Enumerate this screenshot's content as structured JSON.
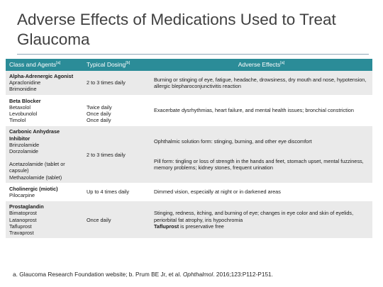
{
  "title": "Adverse Effects of Medications Used to Treat Glaucoma",
  "table": {
    "headers": [
      {
        "label": "Class and Agents",
        "sup": "[a]"
      },
      {
        "label": "Typical Dosing",
        "sup": "[b]"
      },
      {
        "label": "Adverse Effects",
        "sup": "[a]"
      }
    ],
    "rows": [
      {
        "class": "Alpha-Adrenergic Agonist",
        "agents": [
          "Apraclonidine",
          "Brimonidine"
        ],
        "dosing": "2 to 3 times daily",
        "effects": "Burning or stinging of eye, fatigue, headache, drowsiness, dry mouth and nose, hypotension, allergic blepharoconjunctivitis reaction"
      },
      {
        "class": "Beta Blocker",
        "agents": [
          "Betaxolol",
          "Levobunolol",
          "Timolol"
        ],
        "dosing_lines": [
          "Twice daily",
          "Once daily",
          "Once daily"
        ],
        "effects": "Exacerbate dysrhythmias, heart failure, and mental health issues; bronchial constriction"
      },
      {
        "class": "Carbonic Anhydrase Inhibitor",
        "agents": [
          "Brinzolamide",
          "Dorzolamide"
        ],
        "agents2": [
          "Acetazolamide (tablet or capsule)",
          "Methazolamide (tablet)"
        ],
        "dosing": "2 to 3 times daily",
        "effects_1": "Ophthalmic solution form: stinging, burning, and other eye discomfort",
        "effects_2": "Pill form: tingling or loss of strength in the hands and feet, stomach upset, mental fuzziness, memory problems; kidney stones, frequent urination"
      },
      {
        "class": "Cholinergic (miotic)",
        "agents": [
          "Pilocarpine"
        ],
        "dosing": "Up to 4 times daily",
        "effects": "Dimmed vision, especially at night or in darkened areas"
      },
      {
        "class": "Prostaglandin",
        "agents": [
          "Bimatoprost",
          "Latanoprost",
          "Tafluprost",
          "Travaprost"
        ],
        "dosing": "Once daily",
        "effects": "Stinging, redness, itching, and burning of eye; changes in eye color and skin of eyelids, periorbital fat atrophy, iris hypochromia",
        "effects_note": "Tafluprost is preservative free"
      }
    ]
  },
  "footnote": {
    "prefix": "a. Glaucoma Research Foundation website; b. Prum BE Jr, et al. ",
    "journal": "Ophthalmol",
    "suffix": ". 2016;123:P112-P151."
  }
}
